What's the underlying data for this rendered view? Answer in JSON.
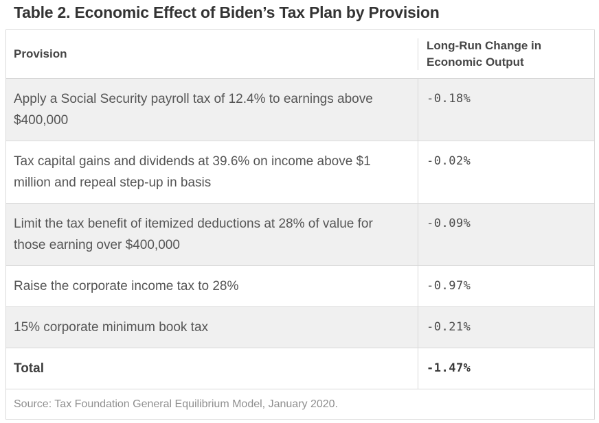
{
  "title": "Table 2. Economic Effect of Biden’s Tax Plan by Provision",
  "table": {
    "columns": [
      "Provision",
      "Long-Run Change in Economic Output"
    ],
    "rows": [
      {
        "provision": "Apply a Social Security payroll tax of 12.4% to earnings above $400,000",
        "value": "-0.18%"
      },
      {
        "provision": "Tax capital gains and dividends at 39.6% on income above $1 million and repeal step-up in basis",
        "value": "-0.02%"
      },
      {
        "provision": "Limit the tax benefit of itemized deductions at 28% of value for those earning over $400,000",
        "value": "-0.09%"
      },
      {
        "provision": "Raise the corporate income tax to 28%",
        "value": "-0.97%"
      },
      {
        "provision": "15% corporate minimum book tax",
        "value": "-0.21%"
      }
    ],
    "total": {
      "label": "Total",
      "value": "-1.47%"
    },
    "source": "Source: Tax Foundation General Equilibrium Model, January 2020."
  },
  "chart_data": {
    "type": "table",
    "title": "Table 2. Economic Effect of Biden's Tax Plan by Provision",
    "columns": [
      "Provision",
      "Long-Run Change in Economic Output"
    ],
    "categories": [
      "Apply a Social Security payroll tax of 12.4% to earnings above $400,000",
      "Tax capital gains and dividends at 39.6% on income above $1 million and repeal step-up in basis",
      "Limit the tax benefit of itemized deductions at 28% of value for those earning over $400,000",
      "Raise the corporate income tax to 28%",
      "15% corporate minimum book tax",
      "Total"
    ],
    "values_percent": [
      -0.18,
      -0.02,
      -0.09,
      -0.97,
      -0.21,
      -1.47
    ]
  },
  "colors": {
    "stripe_row": "#f0f0f0",
    "border": "#d8d8d8",
    "title_text": "#333333",
    "body_text": "#555555",
    "source_text": "#8f8f8f"
  }
}
